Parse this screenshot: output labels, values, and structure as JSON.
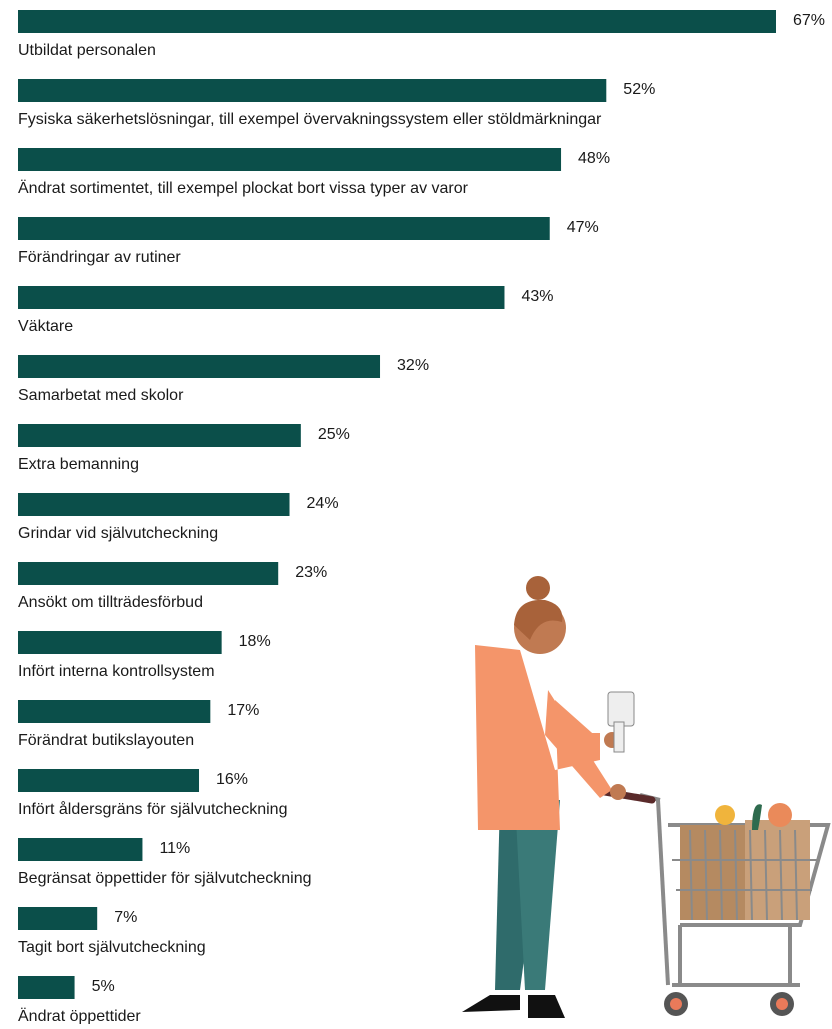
{
  "chart_data": {
    "type": "bar",
    "orientation": "horizontal",
    "color": "#0b4f4a",
    "categories": [
      "Utbildat personalen",
      "Fysiska säkerhetslösningar, till exempel övervakningssystem eller stöldmärkningar",
      "Ändrat sortimentet, till exempel plockat bort vissa typer av varor",
      "Förändringar av rutiner",
      "Väktare",
      "Samarbetat med skolor",
      "Extra bemanning",
      "Grindar vid självutcheckning",
      "Ansökt om tillträdesförbud",
      "Infört interna kontrollsystem",
      "Förändrat butikslayouten",
      "Infört åldersgräns för självutcheckning",
      "Begränsat öppettider för självutcheckning",
      "Tagit bort självutcheckning",
      "Ändrat öppettider"
    ],
    "values": [
      67,
      52,
      48,
      47,
      43,
      32,
      25,
      24,
      23,
      18,
      17,
      16,
      11,
      7,
      5
    ],
    "value_labels": [
      "67%",
      "52%",
      "48%",
      "47%",
      "43%",
      "32%",
      "25%",
      "24%",
      "23%",
      "18%",
      "17%",
      "16%",
      "11%",
      "7%",
      "5%"
    ]
  }
}
